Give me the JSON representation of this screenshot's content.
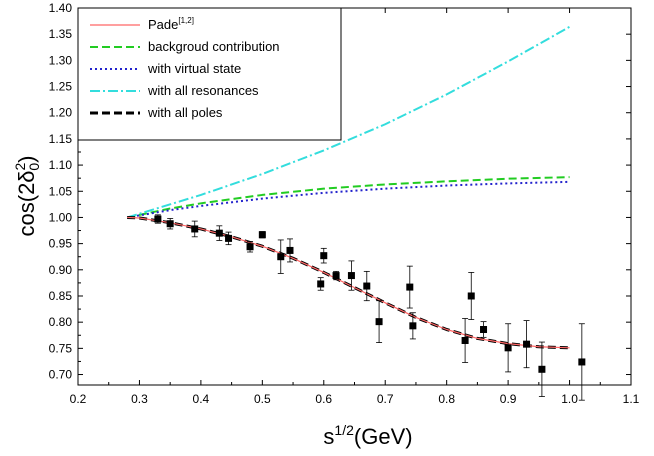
{
  "chart_data": {
    "type": "line",
    "xlabel_base": "s",
    "xlabel_sup": "1/2",
    "xlabel_unit": "(GeV)",
    "ylabel_pre": "cos(2",
    "ylabel_delta": "δ",
    "ylabel_sup": "2",
    "ylabel_sub": "0",
    "ylabel_post": ")",
    "xlim": [
      0.2,
      1.1
    ],
    "ylim": [
      0.68,
      1.4
    ],
    "x_ticks": [
      "0.2",
      "0.3",
      "0.4",
      "0.5",
      "0.6",
      "0.7",
      "0.8",
      "0.9",
      "1.0",
      "1.1"
    ],
    "y_ticks": [
      "0.70",
      "0.75",
      "0.80",
      "0.85",
      "0.90",
      "0.95",
      "1.00",
      "1.05",
      "1.10",
      "1.15",
      "1.20",
      "1.25",
      "1.30",
      "1.35",
      "1.40"
    ],
    "legend": {
      "placement": "top-left",
      "entries": [
        {
          "label": "Pade",
          "sup": "[1,2]",
          "color": "#ff6666",
          "style": "solid",
          "width": 1.2
        },
        {
          "label": "backgroud contribution",
          "sup": "",
          "color": "#22cc22",
          "style": "dash",
          "width": 2
        },
        {
          "label": "with virtual state",
          "sup": "",
          "color": "#2222cc",
          "style": "dot",
          "width": 2
        },
        {
          "label": "with all resonances",
          "sup": "",
          "color": "#33dddd",
          "style": "dashdot",
          "width": 2
        },
        {
          "label": "with all poles",
          "sup": "",
          "color": "#000000",
          "style": "dash",
          "width": 3
        }
      ]
    },
    "series": [
      {
        "name": "with all poles",
        "color": "#000000",
        "style": "dash",
        "width": 3,
        "x": [
          0.28,
          0.3,
          0.35,
          0.4,
          0.45,
          0.5,
          0.55,
          0.6,
          0.65,
          0.7,
          0.75,
          0.8,
          0.85,
          0.9,
          0.95,
          1.0
        ],
        "y": [
          1.0,
          0.999,
          0.99,
          0.978,
          0.963,
          0.945,
          0.922,
          0.895,
          0.866,
          0.837,
          0.809,
          0.786,
          0.769,
          0.759,
          0.753,
          0.751
        ]
      },
      {
        "name": "Pade[1,2]",
        "color": "#ff6666",
        "style": "solid",
        "width": 1.2,
        "x": [
          0.28,
          0.3,
          0.35,
          0.4,
          0.45,
          0.5,
          0.55,
          0.6,
          0.65,
          0.7,
          0.75,
          0.8,
          0.85,
          0.9,
          0.95,
          1.0
        ],
        "y": [
          1.0,
          0.999,
          0.99,
          0.978,
          0.963,
          0.945,
          0.922,
          0.895,
          0.866,
          0.837,
          0.809,
          0.786,
          0.769,
          0.759,
          0.753,
          0.751
        ]
      },
      {
        "name": "backgroud contribution",
        "color": "#22cc22",
        "style": "dash",
        "width": 2,
        "x": [
          0.28,
          0.35,
          0.4,
          0.5,
          0.6,
          0.7,
          0.8,
          0.9,
          1.0
        ],
        "y": [
          1.0,
          1.017,
          1.027,
          1.043,
          1.055,
          1.063,
          1.069,
          1.074,
          1.077
        ]
      },
      {
        "name": "with virtual state",
        "color": "#2222cc",
        "style": "dot",
        "width": 2,
        "x": [
          0.28,
          0.35,
          0.4,
          0.5,
          0.6,
          0.7,
          0.8,
          0.9,
          1.0
        ],
        "y": [
          1.0,
          1.014,
          1.022,
          1.036,
          1.047,
          1.055,
          1.061,
          1.065,
          1.068
        ]
      },
      {
        "name": "with all resonances",
        "color": "#33dddd",
        "style": "dashdot",
        "width": 2,
        "x": [
          0.28,
          0.35,
          0.4,
          0.5,
          0.6,
          0.7,
          0.8,
          0.9,
          1.0
        ],
        "y": [
          1.0,
          1.025,
          1.043,
          1.083,
          1.128,
          1.178,
          1.235,
          1.298,
          1.364
        ]
      }
    ],
    "data_points": [
      {
        "x": 0.33,
        "y": 0.997,
        "err": 0.008
      },
      {
        "x": 0.35,
        "y": 0.988,
        "err": 0.01
      },
      {
        "x": 0.39,
        "y": 0.978,
        "err": 0.015
      },
      {
        "x": 0.43,
        "y": 0.97,
        "err": 0.014
      },
      {
        "x": 0.445,
        "y": 0.96,
        "err": 0.012
      },
      {
        "x": 0.48,
        "y": 0.944,
        "err": 0.01
      },
      {
        "x": 0.5,
        "y": 0.967,
        "err": 0.006
      },
      {
        "x": 0.53,
        "y": 0.925,
        "err": 0.032
      },
      {
        "x": 0.545,
        "y": 0.937,
        "err": 0.022
      },
      {
        "x": 0.595,
        "y": 0.873,
        "err": 0.012
      },
      {
        "x": 0.6,
        "y": 0.927,
        "err": 0.014
      },
      {
        "x": 0.62,
        "y": 0.889,
        "err": 0.008
      },
      {
        "x": 0.645,
        "y": 0.889,
        "err": 0.028
      },
      {
        "x": 0.67,
        "y": 0.869,
        "err": 0.028
      },
      {
        "x": 0.69,
        "y": 0.801,
        "err": 0.04
      },
      {
        "x": 0.74,
        "y": 0.867,
        "err": 0.04
      },
      {
        "x": 0.745,
        "y": 0.793,
        "err": 0.025
      },
      {
        "x": 0.83,
        "y": 0.765,
        "err": 0.042
      },
      {
        "x": 0.84,
        "y": 0.85,
        "err": 0.045
      },
      {
        "x": 0.86,
        "y": 0.786,
        "err": 0.015
      },
      {
        "x": 0.9,
        "y": 0.751,
        "err": 0.046
      },
      {
        "x": 0.93,
        "y": 0.758,
        "err": 0.045
      },
      {
        "x": 0.955,
        "y": 0.71,
        "err": 0.052
      },
      {
        "x": 1.02,
        "y": 0.724,
        "err": 0.073
      }
    ]
  }
}
